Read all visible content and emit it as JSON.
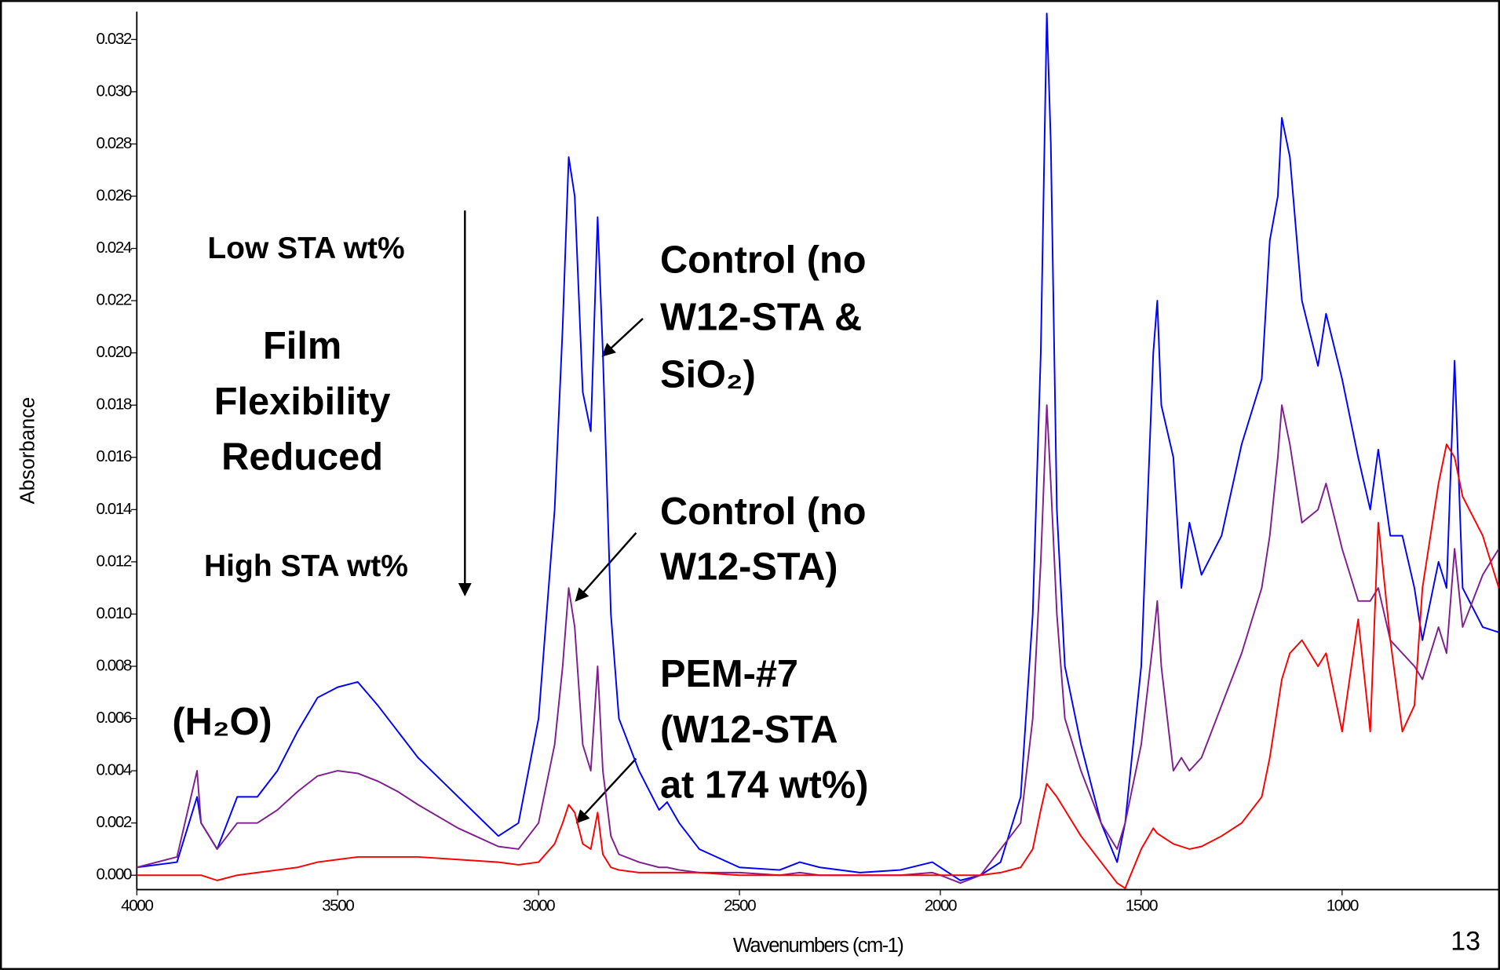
{
  "chart_data": {
    "type": "line",
    "y_label": "Absorbance",
    "x_label": "Wavenumbers (cm-1)",
    "xlim": [
      4000,
      607
    ],
    "ylim": [
      -0.00055,
      0.03307
    ],
    "xticks": [
      4000,
      3500,
      3000,
      2500,
      2000,
      1500,
      1000
    ],
    "yticks": [
      {
        "value": 0,
        "label": "0.000"
      },
      {
        "value": 0.002,
        "label": "0.002"
      },
      {
        "value": 0.004,
        "label": "0.004"
      },
      {
        "value": 0.006,
        "label": "0.006"
      },
      {
        "value": 0.008,
        "label": "0.008"
      },
      {
        "value": 0.01,
        "label": "0.010"
      },
      {
        "value": 0.012,
        "label": "0.012"
      },
      {
        "value": 0.014,
        "label": "0.014"
      },
      {
        "value": 0.016,
        "label": "0.016"
      },
      {
        "value": 0.018,
        "label": "0.018"
      },
      {
        "value": 0.02,
        "label": "0.020"
      },
      {
        "value": 0.022,
        "label": "0.022"
      },
      {
        "value": 0.024,
        "label": "0.024"
      },
      {
        "value": 0.026,
        "label": "0.026"
      },
      {
        "value": 0.028,
        "label": "0.028"
      },
      {
        "value": 0.03,
        "label": "0.030"
      },
      {
        "value": 0.032,
        "label": "0.032"
      }
    ],
    "x": [
      4000,
      3900,
      3850,
      3840,
      3800,
      3750,
      3700,
      3650,
      3600,
      3550,
      3500,
      3450,
      3400,
      3350,
      3300,
      3200,
      3100,
      3050,
      3000,
      2960,
      2940,
      2925,
      2910,
      2890,
      2870,
      2853,
      2840,
      2820,
      2800,
      2750,
      2700,
      2680,
      2650,
      2600,
      2500,
      2400,
      2350,
      2300,
      2200,
      2100,
      2020,
      2000,
      1950,
      1900,
      1850,
      1800,
      1770,
      1750,
      1735,
      1725,
      1710,
      1690,
      1650,
      1600,
      1560,
      1540,
      1500,
      1470,
      1460,
      1450,
      1420,
      1400,
      1380,
      1350,
      1300,
      1250,
      1200,
      1180,
      1160,
      1150,
      1130,
      1100,
      1060,
      1040,
      1000,
      960,
      930,
      910,
      880,
      850,
      820,
      800,
      760,
      740,
      720,
      700,
      650,
      610
    ],
    "series": [
      {
        "color": "#0000ff",
        "values": [
          0.0003,
          0.0005,
          0.003,
          0.002,
          0.001,
          0.003,
          0.003,
          0.004,
          0.0055,
          0.0068,
          0.0072,
          0.0074,
          0.0065,
          0.0055,
          0.0045,
          0.003,
          0.0015,
          0.002,
          0.006,
          0.014,
          0.021,
          0.0275,
          0.026,
          0.0185,
          0.017,
          0.0252,
          0.02,
          0.01,
          0.006,
          0.004,
          0.0025,
          0.0028,
          0.002,
          0.001,
          0.0003,
          0.0002,
          0.0005,
          0.0003,
          0.0001,
          0.0002,
          0.0005,
          0.0003,
          -0.0002,
          0,
          0.0005,
          0.003,
          0.01,
          0.02,
          0.033,
          0.028,
          0.014,
          0.008,
          0.005,
          0.002,
          0.0005,
          0.002,
          0.008,
          0.02,
          0.022,
          0.018,
          0.016,
          0.011,
          0.0135,
          0.0115,
          0.013,
          0.0165,
          0.019,
          0.0243,
          0.026,
          0.029,
          0.0275,
          0.022,
          0.0195,
          0.0215,
          0.019,
          0.016,
          0.014,
          0.0163,
          0.013,
          0.013,
          0.011,
          0.009,
          0.012,
          0.011,
          0.0197,
          0.011,
          0.0095,
          0.0093
        ]
      },
      {
        "color": "#7f1f8f",
        "values": [
          0.0003,
          0.0007,
          0.004,
          0.002,
          0.001,
          0.002,
          0.002,
          0.0025,
          0.0032,
          0.0038,
          0.004,
          0.0039,
          0.0036,
          0.0032,
          0.0027,
          0.0018,
          0.0011,
          0.001,
          0.002,
          0.005,
          0.008,
          0.011,
          0.0095,
          0.005,
          0.004,
          0.008,
          0.004,
          0.0015,
          0.0008,
          0.0005,
          0.0003,
          0.0003,
          0.0002,
          0.0001,
          0.0001,
          0,
          0.0001,
          0,
          0,
          0,
          0.0001,
          0,
          -0.0003,
          0,
          0.001,
          0.002,
          0.006,
          0.012,
          0.018,
          0.015,
          0.01,
          0.006,
          0.004,
          0.002,
          0.001,
          0.002,
          0.005,
          0.009,
          0.0105,
          0.008,
          0.004,
          0.0045,
          0.004,
          0.0045,
          0.0065,
          0.0085,
          0.011,
          0.013,
          0.016,
          0.018,
          0.0165,
          0.0135,
          0.014,
          0.015,
          0.0125,
          0.0105,
          0.0105,
          0.011,
          0.009,
          0.0085,
          0.008,
          0.0075,
          0.0095,
          0.0085,
          0.0125,
          0.0095,
          0.0115,
          0.0125
        ]
      },
      {
        "color": "#ff0000",
        "values": [
          0,
          0,
          0,
          0,
          -0.0002,
          0,
          0.0001,
          0.0002,
          0.0003,
          0.0005,
          0.0006,
          0.0007,
          0.0007,
          0.0007,
          0.0007,
          0.0006,
          0.0005,
          0.0004,
          0.0005,
          0.0012,
          0.002,
          0.0027,
          0.0024,
          0.0012,
          0.001,
          0.0024,
          0.0008,
          0.0003,
          0.0002,
          0.0001,
          0.0001,
          0.0001,
          0.0001,
          0.0001,
          0,
          0,
          0,
          0,
          0,
          0,
          0,
          0,
          0,
          0,
          0.0001,
          0.0003,
          0.001,
          0.0025,
          0.0035,
          0.0033,
          0.003,
          0.0025,
          0.0015,
          0.0005,
          -0.0003,
          -0.0005,
          0.001,
          0.0018,
          0.0016,
          0.0015,
          0.0012,
          0.0011,
          0.001,
          0.0011,
          0.0015,
          0.002,
          0.003,
          0.0045,
          0.0065,
          0.0075,
          0.0085,
          0.009,
          0.008,
          0.0085,
          0.0055,
          0.0098,
          0.0055,
          0.0135,
          0.009,
          0.0055,
          0.0065,
          0.011,
          0.015,
          0.0165,
          0.016,
          0.0145,
          0.013,
          0.011
        ]
      }
    ],
    "annotations": [
      [
        "Low STA wt%"
      ],
      [
        "Film",
        "Flexibility",
        "Reduced"
      ],
      [
        "High STA wt%"
      ],
      [
        "(H₂O)"
      ],
      [
        "Control (no",
        "W12-STA &",
        "SiO₂)"
      ],
      [
        "Control (no",
        "W12-STA)"
      ],
      [
        "PEM-#7",
        "(W12-STA",
        "at 174 wt%)"
      ]
    ],
    "page_number": "13"
  }
}
